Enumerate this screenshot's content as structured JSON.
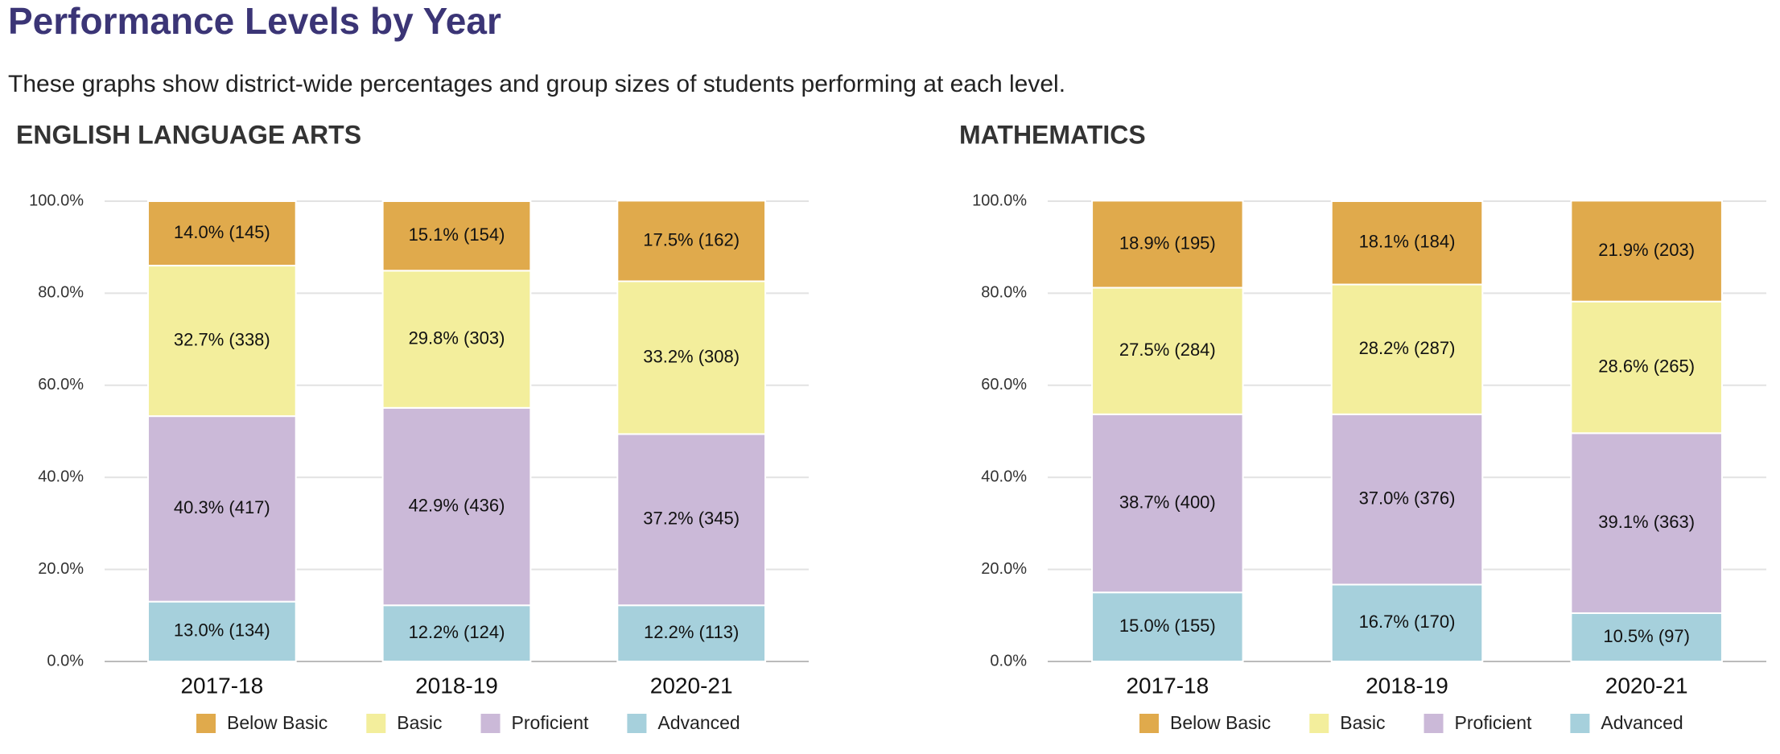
{
  "header": {
    "title": "Performance Levels by Year",
    "subtitle": "These graphs show district-wide percentages and group sizes of students performing at each level."
  },
  "chart_data": [
    {
      "type": "stacked_bar",
      "title": "ENGLISH LANGUAGE ARTS",
      "categories": [
        "2017-18",
        "2018-19",
        "2020-21"
      ],
      "ylim": [
        0,
        100
      ],
      "yticks": [
        {
          "value": 0,
          "label": "0.0%"
        },
        {
          "value": 20,
          "label": "20.0%"
        },
        {
          "value": 40,
          "label": "40.0%"
        },
        {
          "value": 60,
          "label": "60.0%"
        },
        {
          "value": 80,
          "label": "80.0%"
        },
        {
          "value": 100,
          "label": "100.0%"
        }
      ],
      "grid": true,
      "series": [
        {
          "name": "Below Basic",
          "color": "#e0aa4c",
          "values": [
            14.0,
            15.1,
            17.5
          ],
          "value_labels": [
            "14.0% (145)",
            "15.1% (154)",
            "17.5% (162)"
          ]
        },
        {
          "name": "Basic",
          "color": "#f3ee9c",
          "values": [
            32.7,
            29.8,
            33.2
          ],
          "value_labels": [
            "32.7% (338)",
            "29.8% (303)",
            "33.2% (308)"
          ]
        },
        {
          "name": "Proficient",
          "color": "#cbb9d8",
          "values": [
            40.3,
            42.9,
            37.2
          ],
          "value_labels": [
            "40.3% (417)",
            "42.9% (436)",
            "37.2% (345)"
          ]
        },
        {
          "name": "Advanced",
          "color": "#a6d0dc",
          "values": [
            13.0,
            12.2,
            12.2
          ],
          "value_labels": [
            "13.0% (134)",
            "12.2% (124)",
            "12.2% (113)"
          ]
        }
      ]
    },
    {
      "type": "stacked_bar",
      "title": "MATHEMATICS",
      "categories": [
        "2017-18",
        "2018-19",
        "2020-21"
      ],
      "ylim": [
        0,
        100
      ],
      "yticks": [
        {
          "value": 0,
          "label": "0.0%"
        },
        {
          "value": 20,
          "label": "20.0%"
        },
        {
          "value": 40,
          "label": "40.0%"
        },
        {
          "value": 60,
          "label": "60.0%"
        },
        {
          "value": 80,
          "label": "80.0%"
        },
        {
          "value": 100,
          "label": "100.0%"
        }
      ],
      "grid": true,
      "series": [
        {
          "name": "Below Basic",
          "color": "#e0aa4c",
          "values": [
            18.9,
            18.1,
            21.9
          ],
          "value_labels": [
            "18.9% (195)",
            "18.1% (184)",
            "21.9% (203)"
          ]
        },
        {
          "name": "Basic",
          "color": "#f3ee9c",
          "values": [
            27.5,
            28.2,
            28.6
          ],
          "value_labels": [
            "27.5% (284)",
            "28.2% (287)",
            "28.6% (265)"
          ]
        },
        {
          "name": "Proficient",
          "color": "#cbb9d8",
          "values": [
            38.7,
            37.0,
            39.1
          ],
          "value_labels": [
            "38.7% (400)",
            "37.0% (376)",
            "39.1% (363)"
          ]
        },
        {
          "name": "Advanced",
          "color": "#a6d0dc",
          "values": [
            15.0,
            16.7,
            10.5
          ],
          "value_labels": [
            "15.0% (155)",
            "16.7% (170)",
            "10.5% (97)"
          ]
        }
      ]
    }
  ]
}
